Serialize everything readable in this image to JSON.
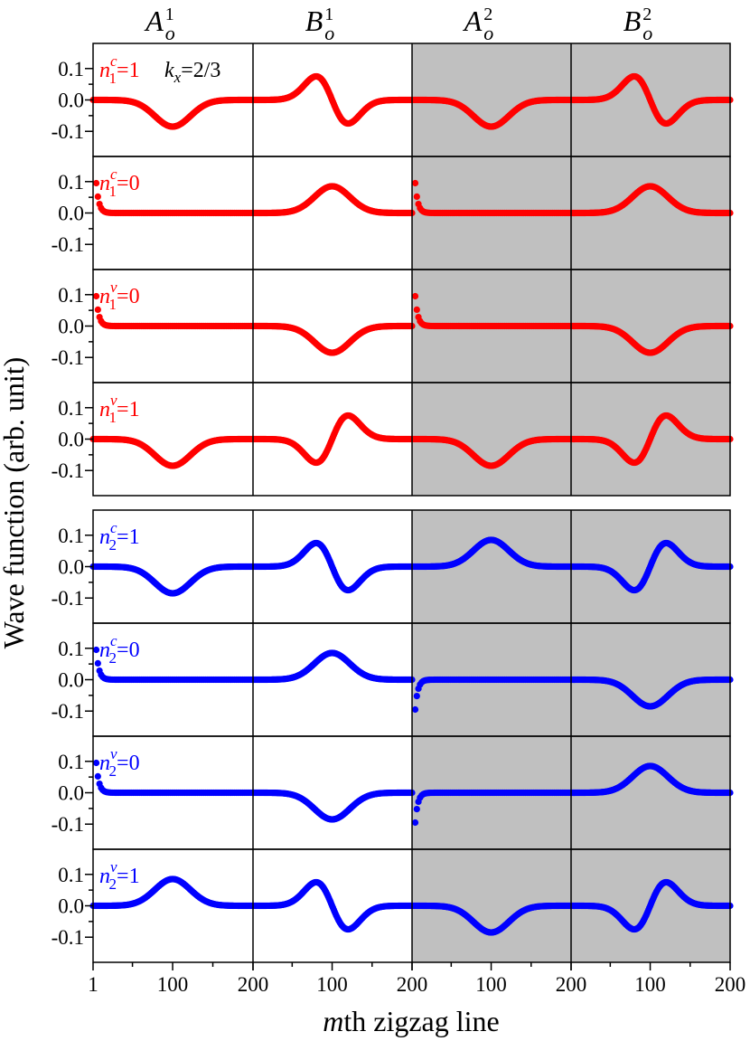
{
  "chart_data": {
    "type": "scatter",
    "ylabel": "Wave function (arb. unit)",
    "xlabel": {
      "var": "m",
      "rest": "th zigzag line"
    },
    "columns": [
      {
        "base": "A",
        "sub": "o",
        "sup": "1"
      },
      {
        "base": "B",
        "sub": "o",
        "sup": "1"
      },
      {
        "base": "A",
        "sub": "o",
        "sup": "2"
      },
      {
        "base": "B",
        "sub": "o",
        "sup": "2"
      }
    ],
    "shaded_columns": [
      2,
      3
    ],
    "shade_color": "#c0c0c0",
    "x_range": [
      1,
      200
    ],
    "x_tick_labels_first": [
      "1",
      "100",
      "200"
    ],
    "x_tick_labels_other": [
      "100",
      "200"
    ],
    "ylim": [
      -0.18,
      0.18
    ],
    "y_tick_labels": [
      "0.1",
      "0.0",
      "-0.1"
    ],
    "y_ticks": [
      0.1,
      0.0,
      -0.1
    ],
    "annotation": {
      "var": "k",
      "sub": "x",
      "value": "=2/3"
    },
    "groups": [
      {
        "color": "#ff0000",
        "rows": [
          {
            "label": {
              "var": "n",
              "sub": "1",
              "sup": "c",
              "value": "=1"
            },
            "panels": [
              {
                "shape": "gauss",
                "peak": -0.085
              },
              {
                "shape": "dgauss",
                "peak": 0.075
              },
              {
                "shape": "gauss",
                "peak": -0.085
              },
              {
                "shape": "dgauss",
                "peak": 0.075
              }
            ]
          },
          {
            "label": {
              "var": "n",
              "sub": "1",
              "sup": "c",
              "value": "=0"
            },
            "panels": [
              {
                "shape": "edge",
                "peak": 0.095
              },
              {
                "shape": "gauss",
                "peak": 0.085
              },
              {
                "shape": "edge",
                "peak": 0.095
              },
              {
                "shape": "gauss",
                "peak": 0.085
              }
            ]
          },
          {
            "label": {
              "var": "n",
              "sub": "1",
              "sup": "v",
              "value": "=0"
            },
            "panels": [
              {
                "shape": "edge",
                "peak": 0.095
              },
              {
                "shape": "gauss",
                "peak": -0.085
              },
              {
                "shape": "edge",
                "peak": 0.095
              },
              {
                "shape": "gauss",
                "peak": -0.085
              }
            ]
          },
          {
            "label": {
              "var": "n",
              "sub": "1",
              "sup": "v",
              "value": "=1"
            },
            "panels": [
              {
                "shape": "gauss",
                "peak": -0.085
              },
              {
                "shape": "dgauss",
                "peak": -0.075
              },
              {
                "shape": "gauss",
                "peak": -0.085
              },
              {
                "shape": "dgauss",
                "peak": -0.075
              }
            ]
          }
        ]
      },
      {
        "color": "#0000ff",
        "rows": [
          {
            "label": {
              "var": "n",
              "sub": "2",
              "sup": "c",
              "value": "=1"
            },
            "panels": [
              {
                "shape": "gauss",
                "peak": -0.085
              },
              {
                "shape": "dgauss",
                "peak": 0.075
              },
              {
                "shape": "gauss",
                "peak": 0.085
              },
              {
                "shape": "dgauss",
                "peak": -0.075
              }
            ]
          },
          {
            "label": {
              "var": "n",
              "sub": "2",
              "sup": "c",
              "value": "=0"
            },
            "panels": [
              {
                "shape": "edge",
                "peak": 0.095
              },
              {
                "shape": "gauss",
                "peak": 0.085
              },
              {
                "shape": "edge",
                "peak": -0.095
              },
              {
                "shape": "gauss",
                "peak": -0.085
              }
            ]
          },
          {
            "label": {
              "var": "n",
              "sub": "2",
              "sup": "v",
              "value": "=0"
            },
            "panels": [
              {
                "shape": "edge",
                "peak": 0.095
              },
              {
                "shape": "gauss",
                "peak": -0.085
              },
              {
                "shape": "edge",
                "peak": -0.095
              },
              {
                "shape": "gauss",
                "peak": 0.085
              }
            ]
          },
          {
            "label": {
              "var": "n",
              "sub": "2",
              "sup": "v",
              "value": "=1"
            },
            "panels": [
              {
                "shape": "gauss",
                "peak": 0.085
              },
              {
                "shape": "dgauss",
                "peak": 0.075
              },
              {
                "shape": "gauss",
                "peak": -0.085
              },
              {
                "shape": "dgauss",
                "peak": -0.075
              }
            ]
          }
        ]
      }
    ]
  }
}
